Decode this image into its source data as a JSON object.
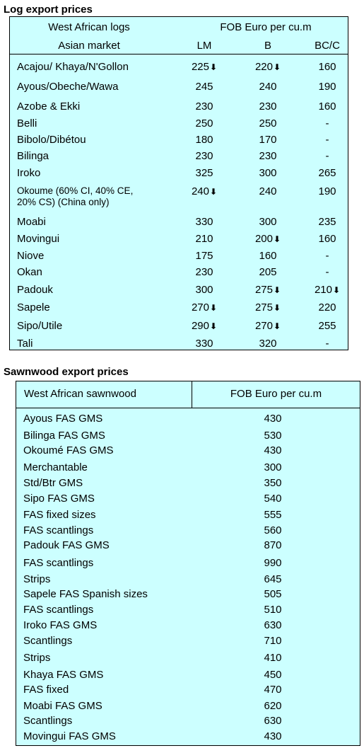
{
  "log_section": {
    "title": "Log export prices",
    "header": {
      "col1_line1": "West African logs",
      "col1_line2": "Asian market",
      "price_group": "FOB Euro per cu.m",
      "grades": [
        "LM",
        "B",
        "BC/C"
      ]
    },
    "rows": [
      {
        "name": "Acajou/ Khaya/N'Gollon",
        "lm": "225",
        "lm_down": true,
        "b": "220",
        "b_down": true,
        "bc": "160",
        "bc_down": false
      },
      {
        "name": "Ayous/Obeche/Wawa",
        "lm": "245",
        "lm_down": false,
        "b": "240",
        "b_down": false,
        "bc": "190",
        "bc_down": false
      },
      {
        "name": "Azobe & Ekki",
        "lm": "230",
        "lm_down": false,
        "b": "230",
        "b_down": false,
        "bc": "160",
        "bc_down": false
      },
      {
        "name": "Belli",
        "lm": "250",
        "lm_down": false,
        "b": "250",
        "b_down": false,
        "bc": "-",
        "bc_down": false
      },
      {
        "name": "Bibolo/Dibétou",
        "lm": "180",
        "lm_down": false,
        "b": "170",
        "b_down": false,
        "bc": "-",
        "bc_down": false
      },
      {
        "name": "Bilinga",
        "lm": "230",
        "lm_down": false,
        "b": "230",
        "b_down": false,
        "bc": "-",
        "bc_down": false
      },
      {
        "name": "Iroko",
        "lm": "325",
        "lm_down": false,
        "b": "300",
        "b_down": false,
        "bc": "265",
        "bc_down": false
      },
      {
        "name": "Okoume (60% CI, 40% CE,\n20% CS) (China only)",
        "small": true,
        "lm": "240",
        "lm_down": true,
        "b": "240",
        "b_down": false,
        "bc": "190",
        "bc_down": false
      },
      {
        "name": "Moabi",
        "lm": "330",
        "lm_down": false,
        "b": "300",
        "b_down": false,
        "bc": "235",
        "bc_down": false
      },
      {
        "name": "Movingui",
        "lm": "210",
        "lm_down": false,
        "b": "200",
        "b_down": true,
        "bc": "160",
        "bc_down": false
      },
      {
        "name": "Niove",
        "lm": "175",
        "lm_down": false,
        "b": "160",
        "b_down": false,
        "bc": "-",
        "bc_down": false
      },
      {
        "name": "Okan",
        "lm": "230",
        "lm_down": false,
        "b": "205",
        "b_down": false,
        "bc": "-",
        "bc_down": false
      },
      {
        "name": "Padouk",
        "lm": "300",
        "lm_down": false,
        "b": "275",
        "b_down": true,
        "bc": "210",
        "bc_down": true
      },
      {
        "name": "Sapele",
        "lm": "270",
        "lm_down": true,
        "b": "275",
        "b_down": true,
        "bc": "220",
        "bc_down": false
      },
      {
        "name": "Sipo/Utile",
        "lm": "290",
        "lm_down": true,
        "b": "270",
        "b_down": true,
        "bc": "255",
        "bc_down": false
      },
      {
        "name": "Tali",
        "lm": "330",
        "lm_down": false,
        "b": "320",
        "b_down": false,
        "bc": "-",
        "bc_down": false
      }
    ]
  },
  "sawn_section": {
    "title": "Sawnwood export prices",
    "header": {
      "col1": "West African sawnwood",
      "col2": "FOB Euro per cu.m"
    },
    "rows": [
      {
        "name": "Ayous FAS GMS",
        "price": "430"
      },
      {
        "name": "Bilinga FAS GMS",
        "price": "530"
      },
      {
        "name": "Okoumé FAS GMS",
        "price": "430"
      },
      {
        "name": "Merchantable",
        "price": "300"
      },
      {
        "name": "Std/Btr GMS",
        "price": "350"
      },
      {
        "name": "Sipo FAS GMS",
        "price": "540"
      },
      {
        "name": "FAS fixed sizes",
        "price": "555"
      },
      {
        "name": "FAS scantlings",
        "price": "560"
      },
      {
        "name": "Padouk FAS GMS",
        "price": "870"
      },
      {
        "name": "FAS scantlings",
        "price": "990"
      },
      {
        "name": "Strips",
        "price": "645"
      },
      {
        "name": "Sapele FAS Spanish sizes",
        "price": "505"
      },
      {
        "name": "FAS scantlings",
        "price": "510"
      },
      {
        "name": "Iroko FAS GMS",
        "price": "630"
      },
      {
        "name": "Scantlings",
        "price": "710"
      },
      {
        "name": "Strips",
        "price": "410"
      },
      {
        "name": "Khaya FAS GMS",
        "price": "450"
      },
      {
        "name": "FAS fixed",
        "price": "470"
      },
      {
        "name": "Moabi FAS GMS",
        "price": "620"
      },
      {
        "name": "Scantlings",
        "price": "630"
      },
      {
        "name": "Movingui FAS GMS",
        "price": "430"
      }
    ]
  },
  "icons": {
    "price_down": "down-arrow-icon"
  },
  "colors": {
    "table_background": "#ccffff",
    "border": "#000000"
  }
}
